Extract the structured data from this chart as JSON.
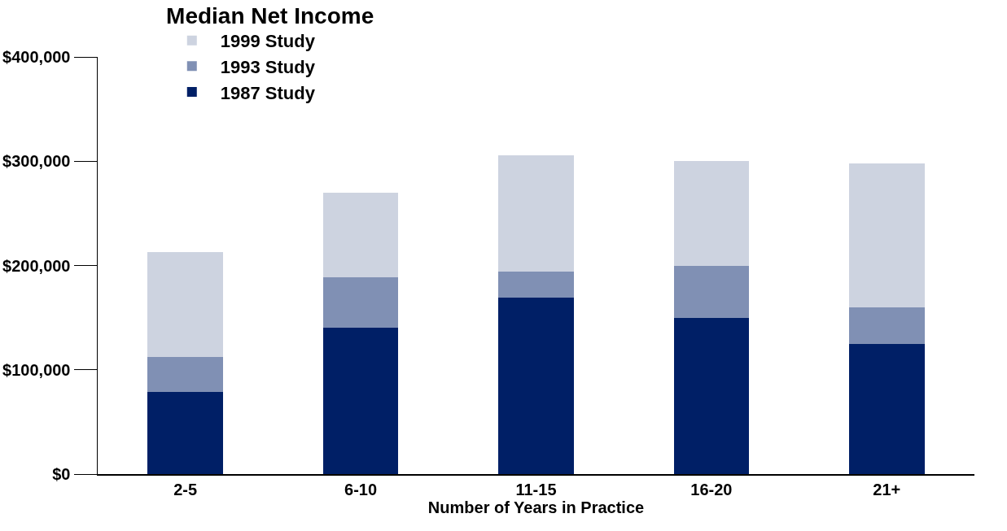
{
  "chart_data": {
    "type": "bar",
    "title": "Median Net Income",
    "xlabel": "Number of Years in Practice",
    "categories": [
      "2-5",
      "6-10",
      "11-15",
      "16-20",
      "21+"
    ],
    "stacked": true,
    "series": [
      {
        "name": "1987 Study",
        "color": "#001f66",
        "values": [
          79000,
          140000,
          169000,
          150000,
          125000
        ]
      },
      {
        "name": "1993 Study",
        "color": "#8090b4",
        "values": [
          33500,
          49000,
          25000,
          50000,
          35000
        ]
      },
      {
        "name": "1999 Study",
        "color": "#cdd3e0",
        "values": [
          100000,
          81000,
          112000,
          100000,
          138000
        ]
      }
    ],
    "ylim": [
      0,
      400000
    ],
    "yticks": [
      {
        "value": 0,
        "label": "$0"
      },
      {
        "value": 100000,
        "label": "$100,000"
      },
      {
        "value": 200000,
        "label": "$200,000"
      },
      {
        "value": 300000,
        "label": "$300,000"
      },
      {
        "value": 400000,
        "label": "$400,000"
      }
    ],
    "grid": false,
    "legend": "top left"
  }
}
